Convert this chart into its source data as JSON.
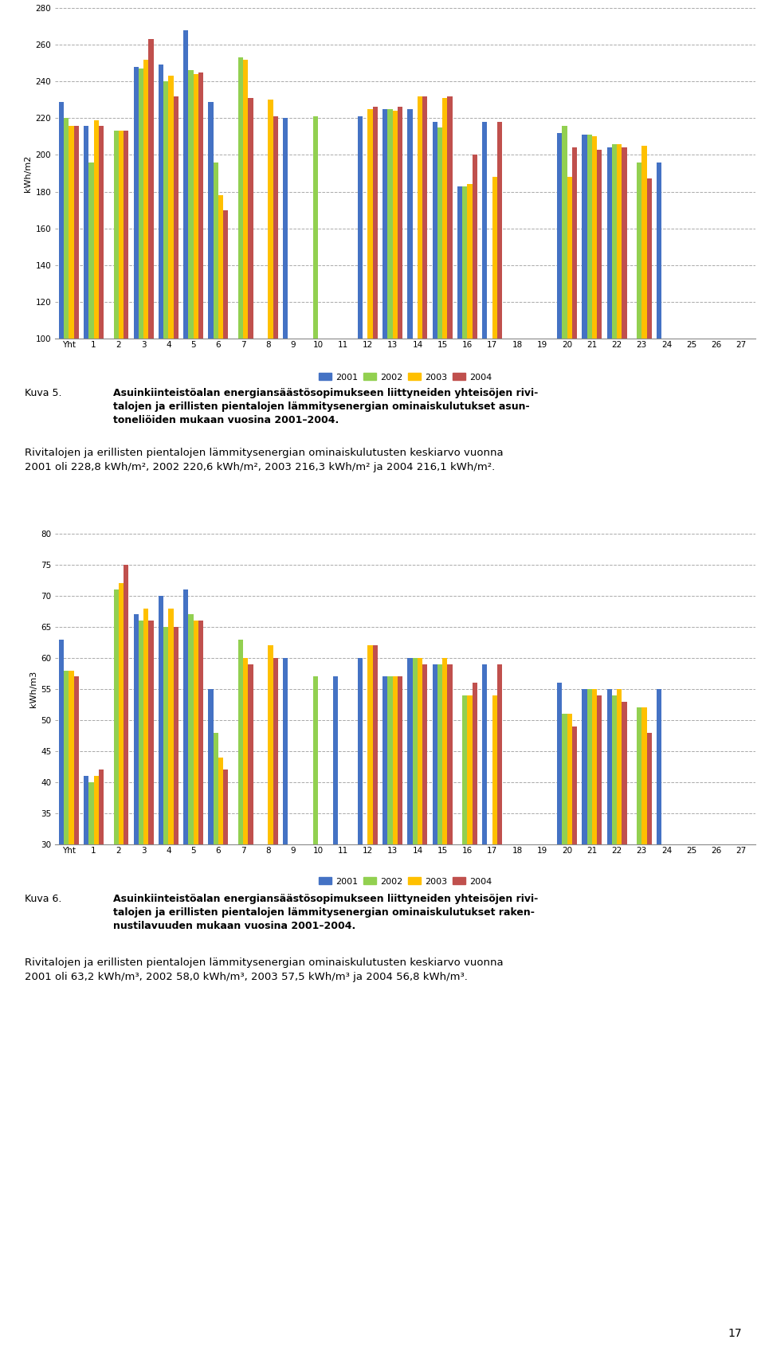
{
  "chart1": {
    "ylabel": "kWh/m2",
    "ylim": [
      100,
      280
    ],
    "yticks": [
      100,
      120,
      140,
      160,
      180,
      200,
      220,
      240,
      260,
      280
    ],
    "categories": [
      "Yht",
      "1",
      "2",
      "3",
      "4",
      "5",
      "6",
      "7",
      "8",
      "9",
      "10",
      "11",
      "12",
      "13",
      "14",
      "15",
      "16",
      "17",
      "18",
      "19",
      "20",
      "21",
      "22",
      "23",
      "24",
      "25",
      "26",
      "27"
    ],
    "data_2001": [
      229,
      216,
      0,
      248,
      249,
      268,
      229,
      0,
      0,
      220,
      0,
      0,
      221,
      225,
      225,
      218,
      183,
      218,
      0,
      0,
      212,
      211,
      204,
      0,
      196,
      0,
      0,
      0
    ],
    "data_2002": [
      220,
      196,
      213,
      247,
      240,
      246,
      196,
      253,
      0,
      0,
      221,
      0,
      0,
      225,
      0,
      215,
      183,
      0,
      0,
      0,
      216,
      211,
      206,
      196,
      0,
      0,
      0,
      0
    ],
    "data_2003": [
      216,
      219,
      213,
      252,
      243,
      244,
      178,
      252,
      230,
      0,
      0,
      0,
      225,
      224,
      232,
      231,
      184,
      188,
      0,
      0,
      188,
      210,
      206,
      205,
      0,
      0,
      0,
      0
    ],
    "data_2004": [
      216,
      216,
      213,
      263,
      232,
      245,
      170,
      231,
      221,
      0,
      0,
      0,
      226,
      226,
      232,
      232,
      200,
      218,
      0,
      0,
      204,
      203,
      204,
      187,
      0,
      0,
      0,
      0
    ]
  },
  "chart2": {
    "ylabel": "kWh/m3",
    "ylim": [
      30,
      80
    ],
    "yticks": [
      30,
      35,
      40,
      45,
      50,
      55,
      60,
      65,
      70,
      75,
      80
    ],
    "categories": [
      "Yht",
      "1",
      "2",
      "3",
      "4",
      "5",
      "6",
      "7",
      "8",
      "9",
      "10",
      "11",
      "12",
      "13",
      "14",
      "15",
      "16",
      "17",
      "18",
      "19",
      "20",
      "21",
      "22",
      "23",
      "24",
      "25",
      "26",
      "27"
    ],
    "data_2001": [
      63,
      41,
      0,
      67,
      70,
      71,
      55,
      0,
      0,
      60,
      0,
      57,
      60,
      57,
      60,
      59,
      0,
      59,
      0,
      0,
      56,
      55,
      55,
      0,
      55,
      0,
      0,
      0
    ],
    "data_2002": [
      58,
      40,
      71,
      66,
      65,
      67,
      48,
      63,
      0,
      0,
      57,
      0,
      0,
      57,
      60,
      59,
      54,
      0,
      0,
      0,
      51,
      55,
      54,
      52,
      0,
      0,
      0,
      0
    ],
    "data_2003": [
      58,
      41,
      72,
      68,
      68,
      66,
      44,
      60,
      62,
      0,
      0,
      0,
      62,
      57,
      60,
      60,
      54,
      54,
      0,
      0,
      51,
      55,
      55,
      52,
      0,
      0,
      0,
      0
    ],
    "data_2004": [
      57,
      42,
      75,
      66,
      65,
      66,
      42,
      59,
      60,
      0,
      0,
      0,
      62,
      57,
      59,
      59,
      56,
      59,
      0,
      0,
      49,
      54,
      53,
      48,
      0,
      0,
      0,
      0
    ]
  },
  "colors": {
    "2001": "#4472C4",
    "2002": "#92D050",
    "2003": "#FFC000",
    "2004": "#C0504D"
  },
  "legend_labels": [
    "2001",
    "2002",
    "2003",
    "2004"
  ],
  "figure_bg": "#FFFFFF",
  "chart1_caption_label": "Kuva 5.",
  "chart1_caption_bold": "Asuinkiinteistöalan energiansäästösopimukseen liittyneiden yhteisöjen rivi-\ntalojen ja erillisten pientalojen lämmitysenergian ominaiskulutukset asun-\ntoneliöiden mukaan vuosina 2001–2004.",
  "chart1_para": "Rivitalojen ja erillisten pientalojen lämmitysenergian ominaiskulutusten keskiarvo vuonna\n2001 oli 228,8 kWh/m², 2002 220,6 kWh/m², 2003 216,3 kWh/m² ja 2004 216,1 kWh/m².",
  "chart2_caption_label": "Kuva 6.",
  "chart2_caption_bold": "Asuinkiinteistöalan energiansäästösopimukseen liittyneiden yhteisöjen rivi-\ntalojen ja erillisten pientalojen lämmitysenergian ominaiskulutukset raken-\nnustilavuuden mukaan vuosina 2001–2004.",
  "chart2_para": "Rivitalojen ja erillisten pientalojen lämmitysenergian ominaiskulutusten keskiarvo vuonna\n2001 oli 63,2 kWh/m³, 2002 58,0 kWh/m³, 2003 57,5 kWh/m³ ja 2004 56,8 kWh/m³.",
  "page_number": "17"
}
